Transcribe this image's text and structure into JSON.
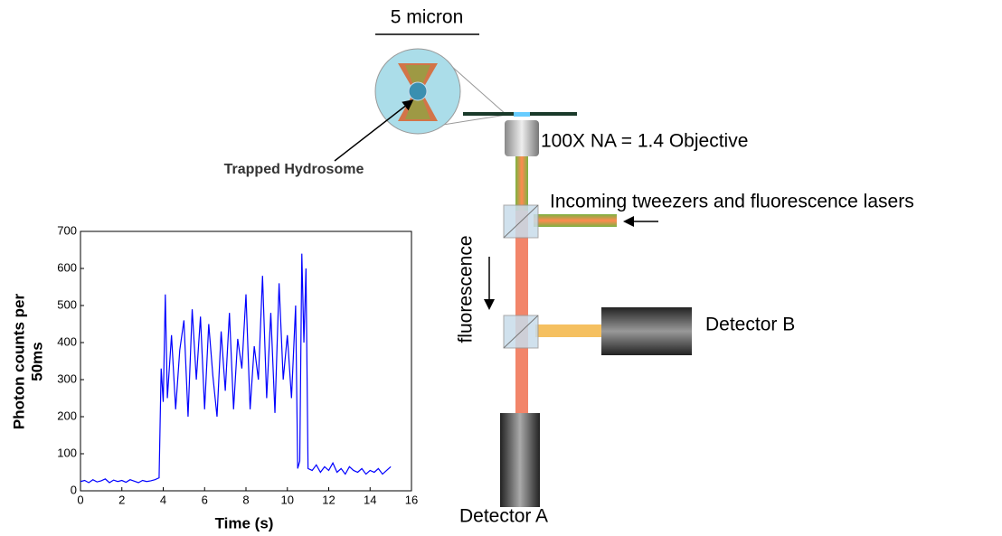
{
  "chart_data": {
    "type": "line",
    "xlabel": "Time (s)",
    "ylabel": [
      "Photon counts per",
      "50ms"
    ],
    "x": [
      0,
      0.2,
      0.4,
      0.6,
      0.8,
      1.0,
      1.2,
      1.4,
      1.6,
      1.8,
      2.0,
      2.2,
      2.4,
      2.6,
      2.8,
      3.0,
      3.2,
      3.4,
      3.6,
      3.8,
      3.9,
      4.0,
      4.1,
      4.2,
      4.4,
      4.6,
      4.8,
      5.0,
      5.2,
      5.4,
      5.6,
      5.8,
      6.0,
      6.2,
      6.4,
      6.6,
      6.8,
      7.0,
      7.2,
      7.4,
      7.6,
      7.8,
      8.0,
      8.2,
      8.4,
      8.6,
      8.8,
      9.0,
      9.2,
      9.4,
      9.6,
      9.8,
      10.0,
      10.2,
      10.4,
      10.5,
      10.6,
      10.7,
      10.8,
      10.9,
      11.0,
      11.2,
      11.4,
      11.6,
      11.8,
      12.0,
      12.2,
      12.4,
      12.6,
      12.8,
      13.0,
      13.2,
      13.4,
      13.6,
      13.8,
      14.0,
      14.2,
      14.4,
      14.6,
      14.8,
      15.0
    ],
    "series": [
      {
        "color": "#0000ff",
        "values": [
          25,
          28,
          22,
          30,
          24,
          27,
          32,
          22,
          29,
          25,
          28,
          23,
          30,
          26,
          22,
          28,
          25,
          27,
          30,
          35,
          330,
          240,
          530,
          250,
          420,
          220,
          380,
          460,
          200,
          490,
          300,
          470,
          220,
          450,
          310,
          200,
          430,
          270,
          480,
          220,
          410,
          330,
          530,
          220,
          390,
          300,
          580,
          250,
          480,
          210,
          560,
          300,
          420,
          250,
          500,
          60,
          80,
          640,
          400,
          600,
          60,
          55,
          70,
          50,
          65,
          55,
          75,
          50,
          60,
          45,
          65,
          55,
          50,
          60,
          45,
          55,
          50,
          60,
          45,
          55,
          65
        ]
      }
    ],
    "xlim": [
      0,
      16
    ],
    "xticks": [
      0,
      2,
      4,
      6,
      8,
      10,
      12,
      14,
      16
    ],
    "ylim": [
      0,
      700
    ],
    "yticks": [
      0,
      100,
      200,
      300,
      400,
      500,
      600,
      700
    ]
  },
  "diagram": {
    "scale": "5 micron",
    "particle": "Trapped Hydrosome",
    "objective": "100X NA = 1.4 Objective",
    "lasers": "Incoming tweezers and fluorescence lasers",
    "fluorescence": "fluorescence",
    "detector_b": "Detector B",
    "detector_a": "Detector A"
  }
}
